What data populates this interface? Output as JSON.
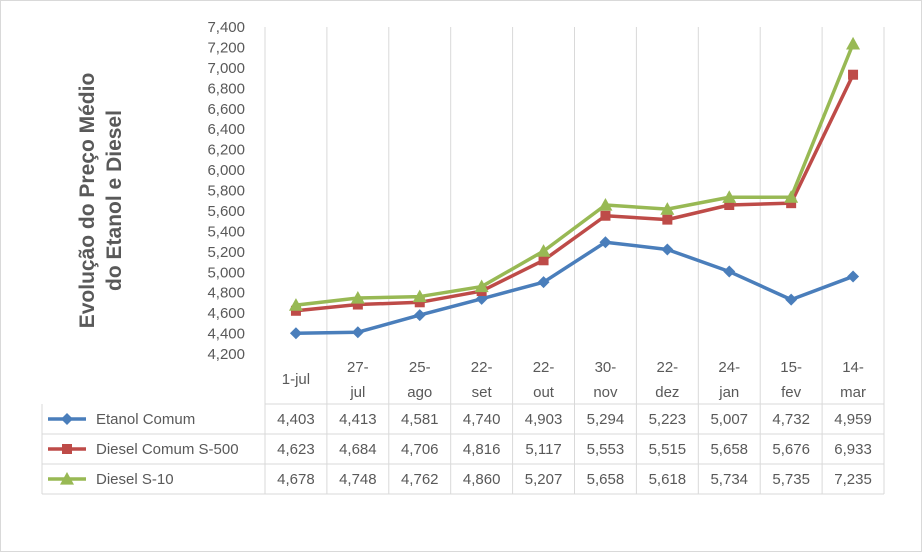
{
  "chart_data": {
    "type": "line",
    "title": "",
    "ylabel_lines": [
      "Evolução do Preço Médio",
      "do Etanol e Diesel"
    ],
    "categories": [
      [
        "1-jul"
      ],
      [
        "27-",
        "jul"
      ],
      [
        "25-",
        "ago"
      ],
      [
        "22-",
        "set"
      ],
      [
        "22-",
        "out"
      ],
      [
        "30-",
        "nov"
      ],
      [
        "22-",
        "dez"
      ],
      [
        "24-",
        "jan"
      ],
      [
        "15-",
        "fev"
      ],
      [
        "14-",
        "mar"
      ]
    ],
    "ylim": [
      4.2,
      7.4
    ],
    "ystep": 0.2,
    "yticks": [
      "4,200",
      "4,400",
      "4,600",
      "4,800",
      "5,000",
      "5,200",
      "5,400",
      "5,600",
      "5,800",
      "6,000",
      "6,200",
      "6,400",
      "6,600",
      "6,800",
      "7,000",
      "7,200",
      "7,400"
    ],
    "grid": "vertical",
    "legend": "data-table",
    "series": [
      {
        "name": "Etanol Comum",
        "color": "#4a7ebb",
        "marker": "diamond",
        "values": [
          4.403,
          4.413,
          4.581,
          4.74,
          4.903,
          5.294,
          5.223,
          5.007,
          4.732,
          4.959
        ],
        "labels": [
          "4,403",
          "4,413",
          "4,581",
          "4,740",
          "4,903",
          "5,294",
          "5,223",
          "5,007",
          "4,732",
          "4,959"
        ]
      },
      {
        "name": "Diesel Comum S-500",
        "color": "#be4b48",
        "marker": "square",
        "values": [
          4.623,
          4.684,
          4.706,
          4.816,
          5.117,
          5.553,
          5.515,
          5.658,
          5.676,
          6.933
        ],
        "labels": [
          "4,623",
          "4,684",
          "4,706",
          "4,816",
          "5,117",
          "5,553",
          "5,515",
          "5,658",
          "5,676",
          "6,933"
        ]
      },
      {
        "name": "Diesel S-10",
        "color": "#98b954",
        "marker": "triangle",
        "values": [
          4.678,
          4.748,
          4.762,
          4.86,
          5.207,
          5.658,
          5.618,
          5.734,
          5.735,
          7.235
        ],
        "labels": [
          "4,678",
          "4,748",
          "4,762",
          "4,860",
          "5,207",
          "5,658",
          "5,618",
          "5,734",
          "5,735",
          "7,235"
        ]
      }
    ]
  }
}
